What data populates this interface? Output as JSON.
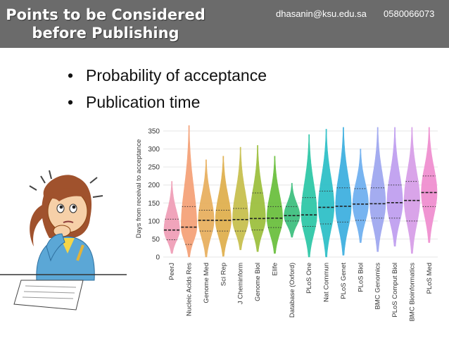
{
  "header": {
    "title_line1": "Points to be Considered",
    "title_line2": "before Publishing",
    "email": "dhasanin@ksu.edu.sa",
    "phone": "0580066073",
    "bg_color": "#6b6b6b"
  },
  "bullets": [
    {
      "text": "Probability of acceptance"
    },
    {
      "text": "Publication time"
    }
  ],
  "illustration": {
    "icon": "thinking-girl-icon"
  },
  "chart_data": {
    "type": "violin",
    "ylabel": "Days from receival to acceptance",
    "xlabel": "",
    "ylim": [
      0,
      350
    ],
    "yticks": [
      0,
      50,
      100,
      150,
      200,
      250,
      300,
      350
    ],
    "categories": [
      "PeerJ",
      "Nucleic Acids Res",
      "Genome Med",
      "Sci Rep",
      "J Cheminform",
      "Genome Biol",
      "Elife",
      "Database (Oxford)",
      "PLoS One",
      "Nat Commun",
      "PLoS Genet",
      "PLoS Biol",
      "BMC Genomics",
      "PLoS Comput Biol",
      "BMC Bioinformatics",
      "PLoS Med"
    ],
    "medians": [
      75,
      83,
      102,
      102,
      104,
      107,
      108,
      115,
      117,
      138,
      141,
      147,
      148,
      151,
      157,
      179
    ],
    "q1": [
      48,
      35,
      72,
      72,
      72,
      75,
      82,
      100,
      85,
      92,
      97,
      102,
      108,
      108,
      100,
      140
    ],
    "q3": [
      105,
      140,
      130,
      130,
      135,
      178,
      140,
      140,
      165,
      183,
      192,
      190,
      192,
      200,
      210,
      225
    ],
    "ymax": [
      210,
      365,
      270,
      280,
      305,
      310,
      280,
      205,
      340,
      355,
      360,
      300,
      360,
      360,
      360,
      360
    ],
    "ymin": [
      10,
      0,
      0,
      2,
      20,
      15,
      10,
      55,
      0,
      0,
      5,
      40,
      15,
      30,
      10,
      40
    ],
    "colors": [
      "#f0a0b8",
      "#f5a37a",
      "#e8b060",
      "#e0b050",
      "#c8c050",
      "#9ec040",
      "#6cc040",
      "#40c080",
      "#30c8a8",
      "#30c0c8",
      "#40b0e0",
      "#70b0f0",
      "#a0a8f0",
      "#c0a0f0",
      "#d8a0e8",
      "#f090d0"
    ]
  }
}
